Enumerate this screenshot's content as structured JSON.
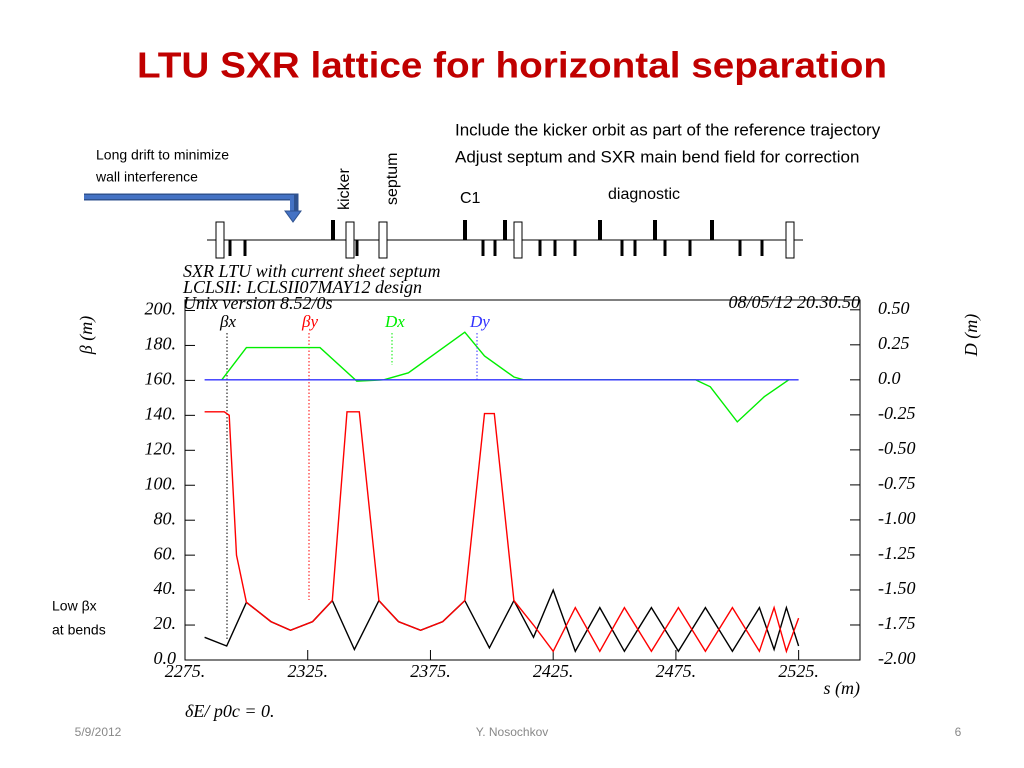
{
  "slide": {
    "title": "LTU SXR lattice for horizontal separation",
    "notes": [
      "Include the kicker orbit as part of the reference trajectory",
      "Adjust septum and SXR main bend field for correction"
    ],
    "drift_note": [
      "Long drift to minimize",
      "wall interference"
    ],
    "kicker": "kicker",
    "septum": "septum",
    "c1": "C1",
    "diagnostic": "diagnostic",
    "low_beta_note": [
      "Low βx",
      "at bends"
    ],
    "footer": {
      "date": "5/9/2012",
      "author": "Y. Nosochkov",
      "page": "6"
    }
  },
  "chart_data": {
    "type": "line",
    "header": [
      "SXR LTU with current sheet septum",
      "LCLSII: LCLSII07MAY12 design",
      "Unix version 8.52/0s"
    ],
    "timestamp": "08/05/12  20.30.50",
    "y_label": "β (m)",
    "y2_label": "D (m)",
    "x_label": "s (m)",
    "footnote": "δE/ p0c  =  0.",
    "xlim": [
      2275,
      2550
    ],
    "ylim": [
      0,
      206
    ],
    "y2lim": [
      -2.0,
      0.57
    ],
    "xticks": [
      {
        "value": 2275,
        "label": "2275."
      },
      {
        "value": 2325,
        "label": "2325."
      },
      {
        "value": 2375,
        "label": "2375."
      },
      {
        "value": 2425,
        "label": "2425."
      },
      {
        "value": 2475,
        "label": "2475."
      },
      {
        "value": 2525,
        "label": "2525."
      }
    ],
    "yticks": [
      {
        "value": 0,
        "label": "0.0"
      },
      {
        "value": 20,
        "label": "20."
      },
      {
        "value": 40,
        "label": "40."
      },
      {
        "value": 60,
        "label": "60."
      },
      {
        "value": 80,
        "label": "80."
      },
      {
        "value": 100,
        "label": "100."
      },
      {
        "value": 120,
        "label": "120."
      },
      {
        "value": 140,
        "label": "140."
      },
      {
        "value": 160,
        "label": "160."
      },
      {
        "value": 180,
        "label": "180."
      },
      {
        "value": 200,
        "label": "200."
      }
    ],
    "y2ticks": [
      {
        "value": -2.0,
        "label": "-2.00"
      },
      {
        "value": -1.75,
        "label": "-1.75"
      },
      {
        "value": -1.5,
        "label": "-1.50"
      },
      {
        "value": -1.25,
        "label": "-1.25"
      },
      {
        "value": -1.0,
        "label": "-1.00"
      },
      {
        "value": -0.75,
        "label": "-0.75"
      },
      {
        "value": -0.5,
        "label": "-0.50"
      },
      {
        "value": -0.25,
        "label": "-0.25"
      },
      {
        "value": 0,
        "label": "0.0"
      },
      {
        "value": 0.25,
        "label": "0.25"
      },
      {
        "value": 0.5,
        "label": "0.50"
      }
    ],
    "series": [
      {
        "name": "βx",
        "color": "#000000",
        "x": [
          2283,
          2292,
          2300,
          2310,
          2318,
          2327,
          2335,
          2344,
          2354,
          2362,
          2371,
          2380,
          2389,
          2399,
          2409,
          2417,
          2425,
          2434,
          2444,
          2454,
          2465,
          2476,
          2487,
          2498,
          2509,
          2515,
          2520,
          2525
        ],
        "values": [
          13,
          8,
          33,
          22,
          17,
          22,
          34,
          6,
          34,
          22,
          17,
          22,
          34,
          7,
          34,
          13,
          40,
          5,
          30,
          5,
          30,
          5,
          30,
          5,
          30,
          6,
          30,
          8
        ]
      },
      {
        "name": "βy",
        "color": "#ff0000",
        "x": [
          2283,
          2291,
          2293,
          2296,
          2300,
          2310,
          2318,
          2327,
          2335,
          2341,
          2346,
          2354,
          2362,
          2371,
          2380,
          2389,
          2397,
          2401,
          2409,
          2417,
          2425,
          2434,
          2444,
          2454,
          2465,
          2476,
          2487,
          2498,
          2509,
          2515,
          2520,
          2525
        ],
        "values": [
          142,
          142,
          140,
          60,
          33,
          22,
          17,
          22,
          34,
          142,
          142,
          34,
          22,
          17,
          22,
          34,
          141,
          141,
          34,
          20,
          5,
          30,
          5,
          30,
          5,
          30,
          5,
          30,
          5,
          30,
          5,
          24
        ]
      },
      {
        "name": "Dx",
        "color": "#00ee00",
        "axis": "y2",
        "x": [
          2290,
          2300,
          2330,
          2345,
          2356,
          2366,
          2389,
          2397,
          2409,
          2413,
          2483,
          2489,
          2500,
          2511,
          2521
        ],
        "values": [
          0,
          0.23,
          0.23,
          -0.01,
          0,
          0.05,
          0.34,
          0.17,
          0.02,
          0,
          0,
          -0.05,
          -0.3,
          -0.12,
          0
        ]
      },
      {
        "name": "Dy",
        "color": "#3333ff",
        "axis": "y2",
        "x": [
          2283,
          2525
        ],
        "values": [
          0,
          0
        ]
      }
    ]
  }
}
